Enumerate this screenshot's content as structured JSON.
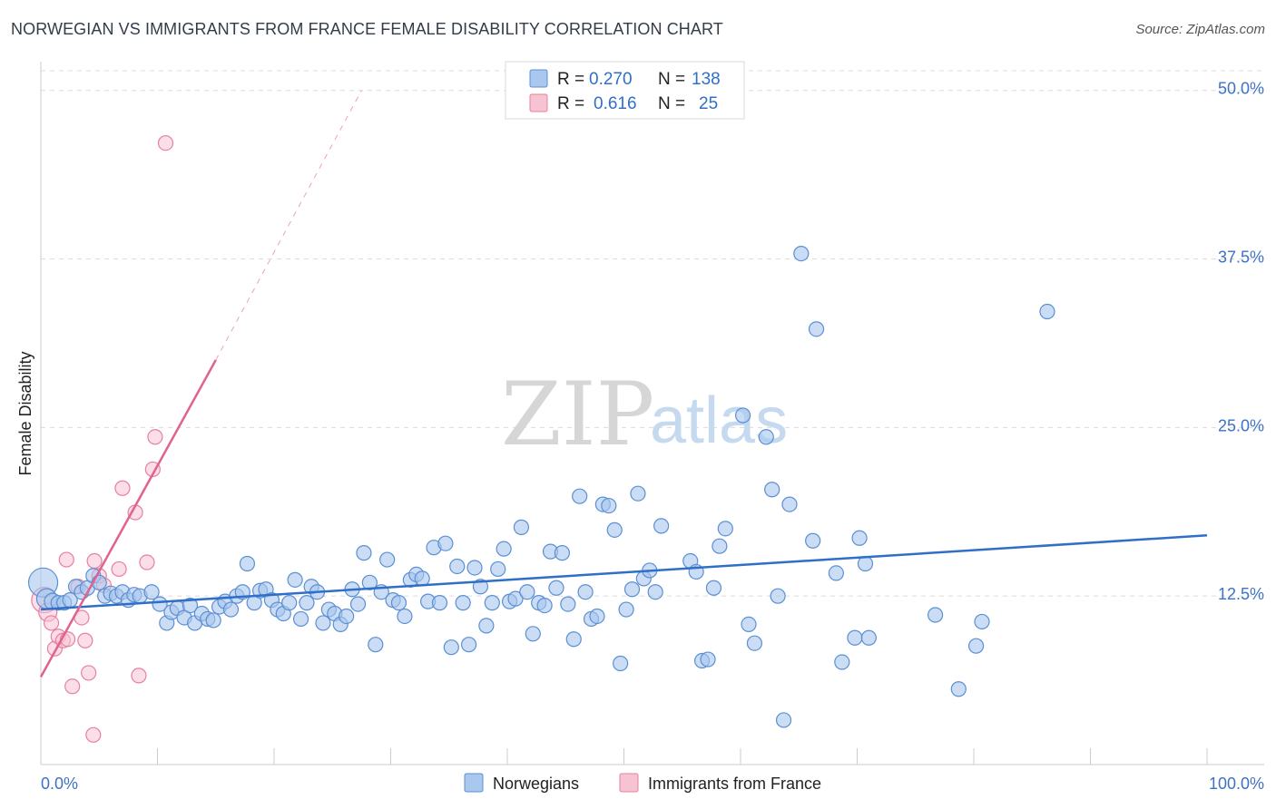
{
  "title": "NORWEGIAN VS IMMIGRANTS FROM FRANCE FEMALE DISABILITY CORRELATION CHART",
  "source": "Source: ZipAtlas.com",
  "watermark": {
    "zip": "ZIP",
    "atlas": "atlas"
  },
  "legend": {
    "rows": [
      {
        "r_label": "R =",
        "r_value": "0.270",
        "n_label": "N =",
        "n_value": "138"
      },
      {
        "r_label": "R =",
        "r_value": "0.616",
        "n_label": "N =",
        "n_value": "25"
      }
    ]
  },
  "bottom_legend": [
    "Norwegians",
    "Immigrants from France"
  ],
  "chart_data": {
    "type": "scatter",
    "title": "NORWEGIAN VS IMMIGRANTS FROM FRANCE FEMALE DISABILITY CORRELATION CHART",
    "xlabel": "",
    "ylabel": "Female Disability",
    "xlim": [
      0,
      100
    ],
    "ylim": [
      0,
      52
    ],
    "x_tick_labels": [
      "0.0%",
      "100.0%"
    ],
    "y_ticks": [
      12.5,
      25.0,
      37.5,
      50.0
    ],
    "y_tick_labels": [
      "12.5%",
      "25.0%",
      "37.5%",
      "50.0%"
    ],
    "grid": true,
    "colors": {
      "norwegians_fill": "#a9c7ef",
      "norwegians_stroke": "#5b8fd3",
      "norwegians_line": "#2f6fc9",
      "france_fill": "#f7c3d3",
      "france_stroke": "#e6809f",
      "france_line": "#e0628e"
    },
    "series": [
      {
        "name": "Norwegians",
        "r": 0.27,
        "n": 138,
        "trend": {
          "x0": 0,
          "y0": 11.5,
          "x1": 100,
          "y1": 17.0
        },
        "points": [
          [
            0.2,
            13.5,
            16
          ],
          [
            0.5,
            12.3,
            11
          ],
          [
            1.0,
            12.1,
            9
          ],
          [
            1.5,
            12.0,
            8
          ],
          [
            2.0,
            12.0,
            8
          ],
          [
            2.5,
            12.2,
            8
          ],
          [
            3.0,
            13.2,
            8
          ],
          [
            3.5,
            12.8,
            8
          ],
          [
            4.0,
            13.1,
            8
          ],
          [
            4.5,
            14.0,
            8
          ],
          [
            5.0,
            13.5,
            8
          ],
          [
            5.5,
            12.5,
            8
          ],
          [
            6.0,
            12.7,
            8
          ],
          [
            6.5,
            12.5,
            8
          ],
          [
            7.0,
            12.8,
            8
          ],
          [
            7.5,
            12.2,
            8
          ],
          [
            8.0,
            12.6,
            8
          ],
          [
            8.5,
            12.5,
            8
          ],
          [
            9.5,
            12.8,
            8
          ],
          [
            10.2,
            11.9,
            8
          ],
          [
            10.8,
            10.5,
            8
          ],
          [
            11.2,
            11.3,
            8
          ],
          [
            11.7,
            11.6,
            8
          ],
          [
            12.3,
            10.9,
            8
          ],
          [
            12.8,
            11.8,
            8
          ],
          [
            13.2,
            10.5,
            8
          ],
          [
            13.8,
            11.2,
            8
          ],
          [
            14.3,
            10.8,
            8
          ],
          [
            14.8,
            10.7,
            8
          ],
          [
            15.3,
            11.7,
            8
          ],
          [
            15.8,
            12.1,
            8
          ],
          [
            16.3,
            11.5,
            8
          ],
          [
            16.8,
            12.5,
            8
          ],
          [
            17.3,
            12.8,
            8
          ],
          [
            17.7,
            14.9,
            8
          ],
          [
            18.3,
            12.0,
            8
          ],
          [
            18.8,
            12.9,
            8
          ],
          [
            19.3,
            13.0,
            8
          ],
          [
            19.8,
            12.2,
            8
          ],
          [
            20.3,
            11.5,
            8
          ],
          [
            20.8,
            11.2,
            8
          ],
          [
            21.3,
            12.0,
            8
          ],
          [
            21.8,
            13.7,
            8
          ],
          [
            22.3,
            10.8,
            8
          ],
          [
            22.8,
            12.0,
            8
          ],
          [
            23.2,
            13.2,
            8
          ],
          [
            23.7,
            12.8,
            8
          ],
          [
            24.2,
            10.5,
            8
          ],
          [
            24.7,
            11.5,
            8
          ],
          [
            25.2,
            11.2,
            8
          ],
          [
            25.7,
            10.4,
            8
          ],
          [
            26.2,
            11.0,
            8
          ],
          [
            26.7,
            13.0,
            8
          ],
          [
            27.2,
            11.9,
            8
          ],
          [
            27.7,
            15.7,
            8
          ],
          [
            28.2,
            13.5,
            8
          ],
          [
            28.7,
            8.9,
            8
          ],
          [
            29.2,
            12.8,
            8
          ],
          [
            29.7,
            15.2,
            8
          ],
          [
            30.2,
            12.2,
            8
          ],
          [
            30.7,
            12.0,
            8
          ],
          [
            31.2,
            11.0,
            8
          ],
          [
            31.7,
            13.7,
            8
          ],
          [
            32.2,
            14.1,
            8
          ],
          [
            32.7,
            13.8,
            8
          ],
          [
            33.2,
            12.1,
            8
          ],
          [
            33.7,
            16.1,
            8
          ],
          [
            34.2,
            12.0,
            8
          ],
          [
            34.7,
            16.4,
            8
          ],
          [
            35.2,
            8.7,
            8
          ],
          [
            35.7,
            14.7,
            8
          ],
          [
            36.2,
            12.0,
            8
          ],
          [
            36.7,
            8.9,
            8
          ],
          [
            37.2,
            14.6,
            8
          ],
          [
            37.7,
            13.2,
            8
          ],
          [
            38.2,
            10.3,
            8
          ],
          [
            38.7,
            12.0,
            8
          ],
          [
            39.2,
            14.5,
            8
          ],
          [
            39.7,
            16.0,
            8
          ],
          [
            40.2,
            12.1,
            8
          ],
          [
            40.7,
            12.3,
            8
          ],
          [
            41.2,
            17.6,
            8
          ],
          [
            41.7,
            12.8,
            8
          ],
          [
            42.2,
            9.7,
            8
          ],
          [
            42.7,
            12.0,
            8
          ],
          [
            43.2,
            11.8,
            8
          ],
          [
            43.7,
            15.8,
            8
          ],
          [
            44.2,
            13.1,
            8
          ],
          [
            44.7,
            15.7,
            8
          ],
          [
            45.2,
            11.9,
            8
          ],
          [
            45.7,
            9.3,
            8
          ],
          [
            46.2,
            19.9,
            8
          ],
          [
            46.7,
            12.8,
            8
          ],
          [
            47.2,
            10.8,
            8
          ],
          [
            47.7,
            11.0,
            8
          ],
          [
            48.2,
            19.3,
            8
          ],
          [
            48.7,
            19.2,
            8
          ],
          [
            49.2,
            17.4,
            8
          ],
          [
            49.7,
            7.5,
            8
          ],
          [
            50.2,
            11.5,
            8
          ],
          [
            50.7,
            13.0,
            8
          ],
          [
            51.2,
            20.1,
            8
          ],
          [
            51.7,
            13.8,
            8
          ],
          [
            52.2,
            14.4,
            8
          ],
          [
            52.7,
            12.8,
            8
          ],
          [
            53.2,
            17.7,
            8
          ],
          [
            55.7,
            15.1,
            8
          ],
          [
            56.2,
            14.3,
            8
          ],
          [
            56.7,
            7.7,
            8
          ],
          [
            57.2,
            7.8,
            8
          ],
          [
            57.7,
            13.1,
            8
          ],
          [
            58.2,
            16.2,
            8
          ],
          [
            58.7,
            17.5,
            8
          ],
          [
            60.2,
            25.9,
            8
          ],
          [
            60.7,
            10.4,
            8
          ],
          [
            61.2,
            9.0,
            8
          ],
          [
            62.2,
            24.3,
            8
          ],
          [
            62.7,
            20.4,
            8
          ],
          [
            63.2,
            12.5,
            8
          ],
          [
            63.7,
            3.3,
            8
          ],
          [
            64.2,
            19.3,
            8
          ],
          [
            65.2,
            37.9,
            8
          ],
          [
            66.2,
            16.6,
            8
          ],
          [
            66.5,
            32.3,
            8
          ],
          [
            68.2,
            14.2,
            8
          ],
          [
            68.7,
            7.6,
            8
          ],
          [
            69.8,
            9.4,
            8
          ],
          [
            70.2,
            16.8,
            8
          ],
          [
            70.7,
            14.9,
            8
          ],
          [
            71.0,
            9.4,
            8
          ],
          [
            76.7,
            11.1,
            8
          ],
          [
            78.7,
            5.6,
            8
          ],
          [
            80.2,
            8.8,
            8
          ],
          [
            80.7,
            10.6,
            8
          ],
          [
            86.3,
            33.6,
            8
          ]
        ]
      },
      {
        "name": "Immigrants from France",
        "r": 0.616,
        "n": 25,
        "trend": {
          "x0": 0,
          "y0": 6.5,
          "x1": 15,
          "y1": 30.0,
          "dashed_to": {
            "x": 27.5,
            "y": 50.0
          }
        },
        "points": [
          [
            0.3,
            12.2,
            14
          ],
          [
            0.6,
            11.3,
            10
          ],
          [
            0.9,
            10.5,
            8
          ],
          [
            1.2,
            8.6,
            8
          ],
          [
            1.5,
            9.5,
            8
          ],
          [
            1.9,
            9.2,
            8
          ],
          [
            2.3,
            9.3,
            8
          ],
          [
            2.7,
            5.8,
            8
          ],
          [
            3.2,
            13.2,
            8
          ],
          [
            3.5,
            10.9,
            8
          ],
          [
            4.1,
            6.8,
            8
          ],
          [
            4.5,
            2.2,
            8
          ],
          [
            4.6,
            15.1,
            8
          ],
          [
            5.0,
            14.0,
            8
          ],
          [
            5.4,
            13.3,
            8
          ],
          [
            6.7,
            14.5,
            8
          ],
          [
            7.0,
            20.5,
            8
          ],
          [
            8.1,
            18.7,
            8
          ],
          [
            8.4,
            6.6,
            8
          ],
          [
            9.1,
            15.0,
            8
          ],
          [
            9.6,
            21.9,
            8
          ],
          [
            9.8,
            24.3,
            8
          ],
          [
            10.7,
            46.1,
            8
          ],
          [
            2.2,
            15.2,
            8
          ],
          [
            3.8,
            9.2,
            8
          ]
        ]
      }
    ]
  }
}
